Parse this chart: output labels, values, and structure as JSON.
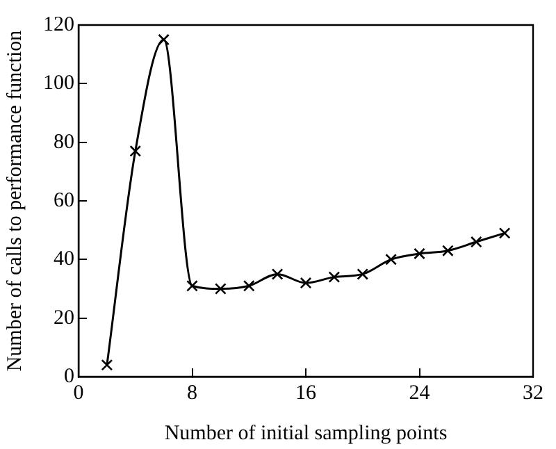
{
  "chart_data": {
    "type": "line",
    "xlabel": "Number of initial sampling points",
    "ylabel": "Number of calls to performance function",
    "x": [
      2,
      4,
      6,
      8,
      10,
      12,
      14,
      16,
      18,
      20,
      22,
      24,
      26,
      28,
      30
    ],
    "series": [
      {
        "color": "#000000",
        "values": [
          4,
          77,
          115,
          31,
          30,
          31,
          35,
          32,
          34,
          35,
          40,
          42,
          43,
          46,
          49
        ]
      }
    ],
    "xlim": [
      0,
      32
    ],
    "xticks": [
      0,
      8,
      16,
      24,
      32
    ],
    "ylim": [
      0,
      120
    ],
    "yticks": [
      0,
      20,
      40,
      60,
      80,
      100,
      120
    ],
    "grid": false,
    "legend": false,
    "marker": "cross",
    "line_style": "solid"
  }
}
